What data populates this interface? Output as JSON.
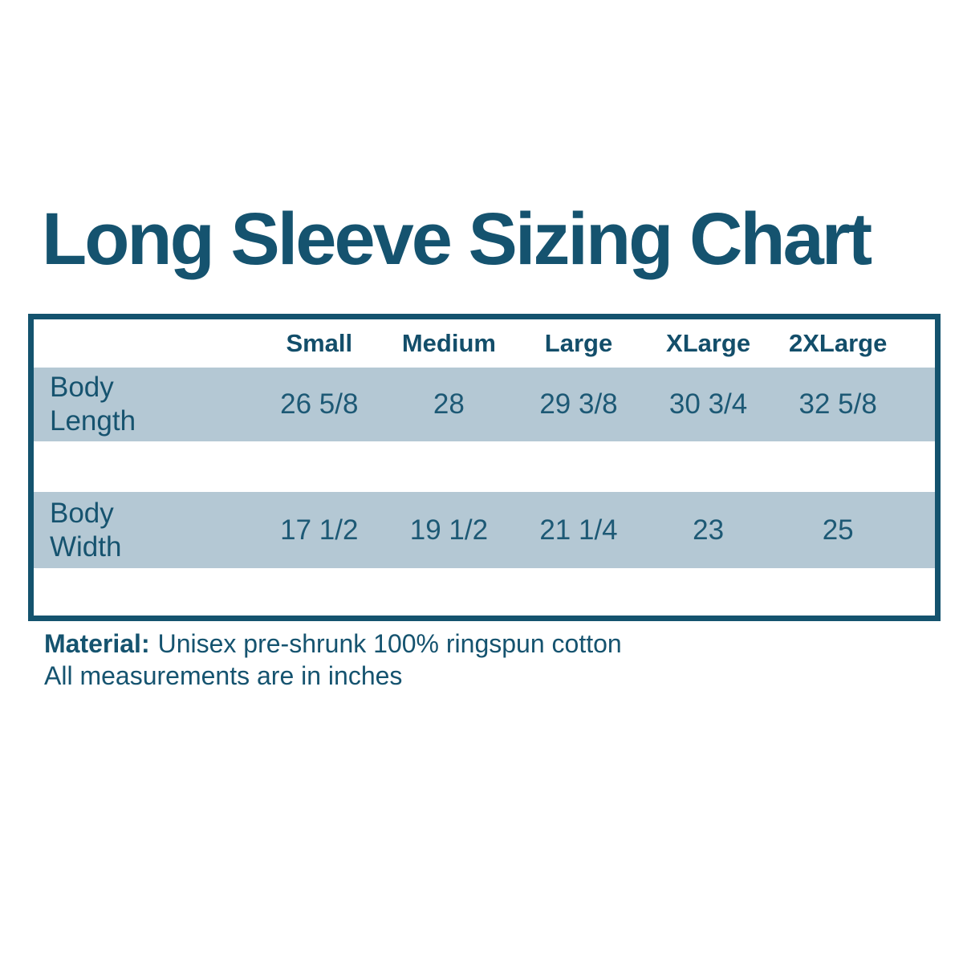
{
  "title": "Long Sleeve Sizing Chart",
  "colors": {
    "accent_teal": "#15536f",
    "table_border": "#14536e",
    "shaded_row_background": "#b4c8d4",
    "page_background": "#ffffff"
  },
  "table": {
    "size_headers": [
      "Small",
      "Medium",
      "Large",
      "XLarge",
      "2XLarge"
    ],
    "rows": [
      {
        "label": "Body\nLength",
        "values": [
          "26 5/8",
          "28",
          "29 3/8",
          "30 3/4",
          "32 5/8"
        ]
      },
      {
        "label": "Body\nWidth",
        "values": [
          "17 1/2",
          "19 1/2",
          "21 1/4",
          "23",
          "25"
        ]
      }
    ]
  },
  "notes": {
    "material_label": "Material:",
    "material_text": "Unisex pre-shrunk 100% ringspun cotton",
    "measurements_text": "All measurements are in inches"
  },
  "chart_data": {
    "type": "table",
    "title": "Long Sleeve Sizing Chart",
    "columns": [
      "",
      "Small",
      "Medium",
      "Large",
      "XLarge",
      "2XLarge"
    ],
    "rows": [
      [
        "Body Length",
        "26 5/8",
        "28",
        "29 3/8",
        "30 3/4",
        "32 5/8"
      ],
      [
        "Body Width",
        "17 1/2",
        "19 1/2",
        "21 1/4",
        "23",
        "25"
      ]
    ],
    "units": "inches",
    "notes": [
      "Material: Unisex pre-shrunk 100% ringspun cotton",
      "All measurements are in inches"
    ]
  }
}
